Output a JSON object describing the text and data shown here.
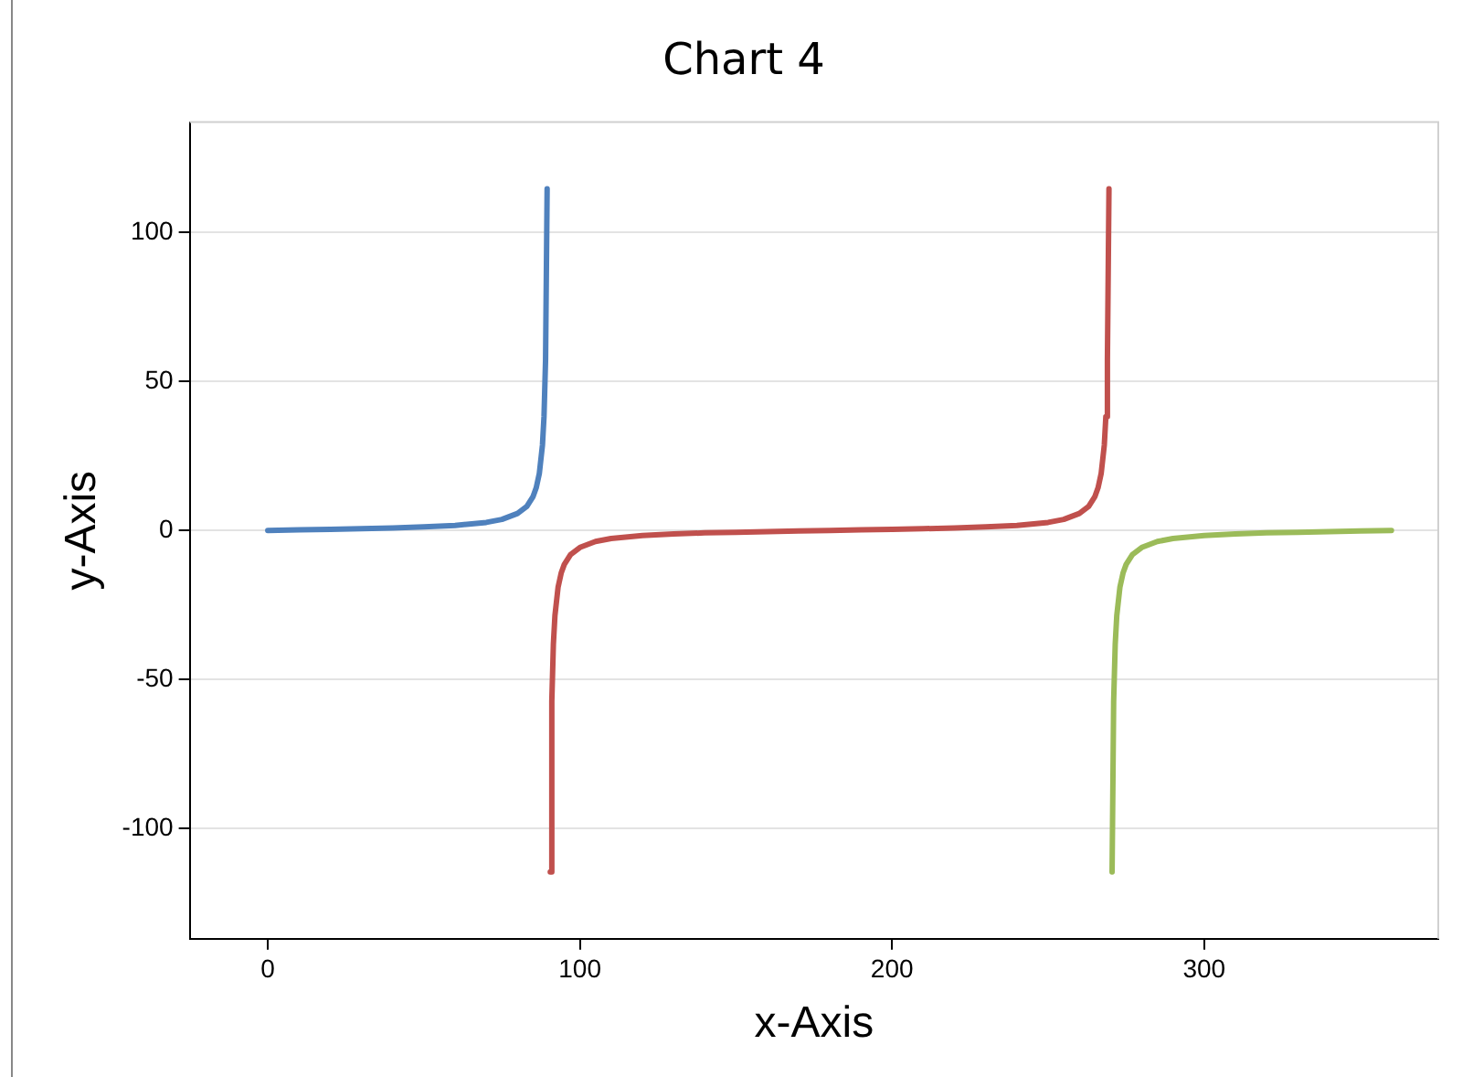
{
  "chart_data": {
    "type": "line",
    "title": "Chart 4",
    "xlabel": "x-Axis",
    "ylabel": "y-Axis",
    "xlim": [
      -25,
      375
    ],
    "ylim": [
      -137,
      137
    ],
    "xticks": [
      0,
      100,
      200,
      300
    ],
    "yticks": [
      -100,
      -50,
      0,
      50,
      100
    ],
    "grid": "y",
    "legend": false,
    "marker": "none",
    "line_style": "solid",
    "series": [
      {
        "color": "#4f81bd",
        "x": [
          0,
          10,
          20,
          30,
          40,
          50,
          60,
          70,
          75,
          80,
          83,
          85,
          86,
          87,
          88,
          88.5,
          89,
          89.5
        ],
        "values": [
          0,
          0.2,
          0.4,
          0.6,
          0.8,
          1.2,
          1.7,
          2.7,
          3.7,
          5.7,
          8.1,
          11.4,
          14.3,
          19.1,
          28.6,
          38.2,
          57.3,
          114.6
        ]
      },
      {
        "color": "#c0504d",
        "x": [
          90.5,
          91,
          91.5,
          92,
          93,
          94,
          95,
          97,
          100,
          105,
          110,
          120,
          130,
          140,
          150,
          160,
          170,
          180,
          190,
          200,
          210,
          220,
          230,
          240,
          250,
          255,
          260,
          263,
          265,
          266,
          267,
          268,
          268.5,
          269,
          269.5
        ],
        "values": [
          -114.6,
          -57.3,
          -38.2,
          -28.6,
          -19.1,
          -14.3,
          -11.4,
          -8.1,
          -5.7,
          -3.7,
          -2.7,
          -1.7,
          -1.2,
          -0.8,
          -0.6,
          -0.4,
          -0.2,
          0,
          0.2,
          0.4,
          0.6,
          0.8,
          1.2,
          1.7,
          2.7,
          3.7,
          5.7,
          8.1,
          11.4,
          14.3,
          19.1,
          28.6,
          38.2,
          57.3,
          114.6
        ]
      },
      {
        "color": "#9bbb59",
        "x": [
          270.5,
          271,
          271.5,
          272,
          273,
          274,
          275,
          277,
          280,
          285,
          290,
          300,
          310,
          320,
          330,
          340,
          350,
          360
        ],
        "values": [
          -114.6,
          -57.3,
          -38.2,
          -28.6,
          -19.1,
          -14.3,
          -11.4,
          -8.1,
          -5.7,
          -3.7,
          -2.7,
          -1.7,
          -1.2,
          -0.8,
          -0.6,
          -0.4,
          -0.2,
          0
        ]
      }
    ]
  }
}
